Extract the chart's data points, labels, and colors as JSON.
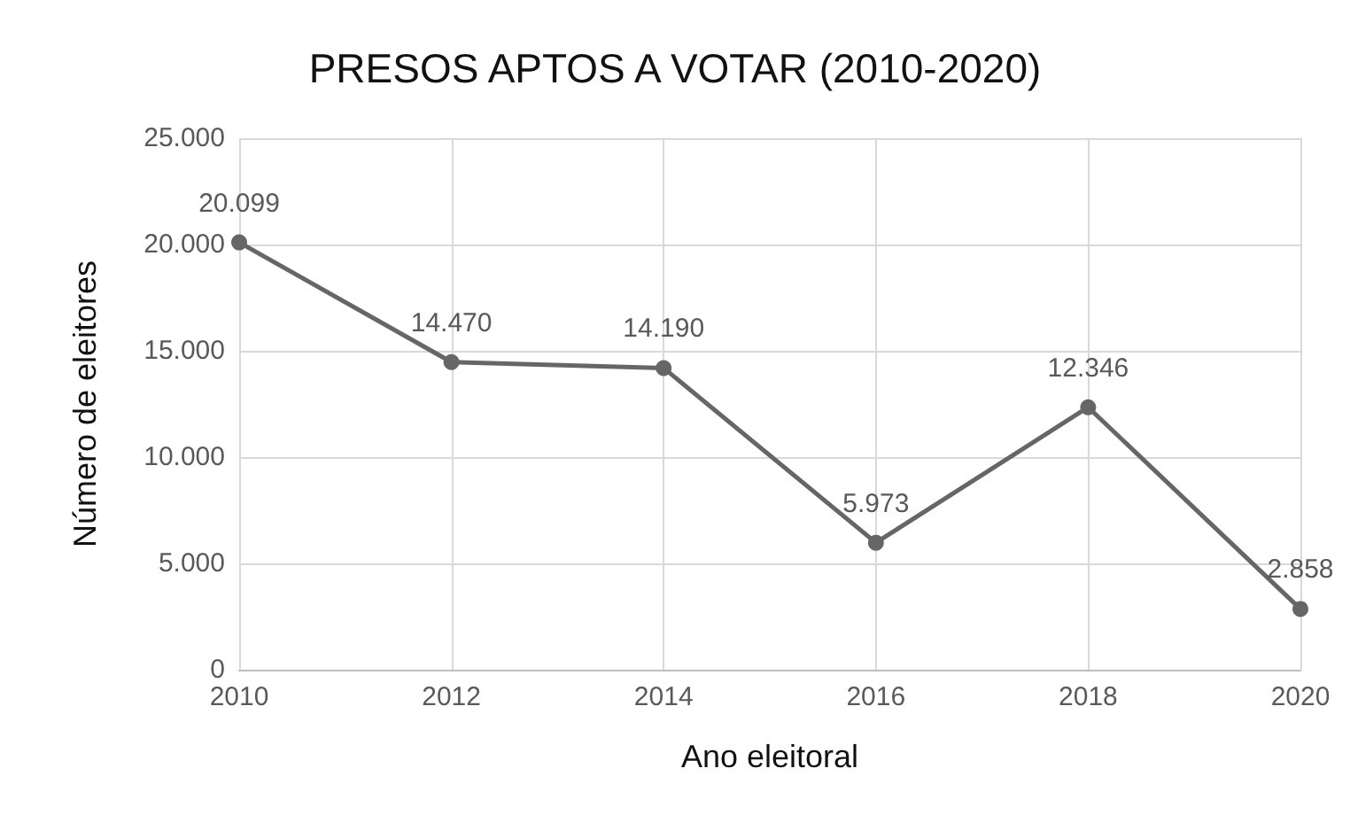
{
  "chart_data": {
    "type": "line",
    "title": "PRESOS APTOS A VOTAR (2010-2020)",
    "xlabel": "Ano eleitoral",
    "ylabel": "Número de eleitores",
    "x": [
      2010,
      2012,
      2014,
      2016,
      2018,
      2020
    ],
    "series": [
      {
        "color": "#666666",
        "values": [
          20099,
          14470,
          14190,
          5973,
          12346,
          2858
        ],
        "value_labels": [
          "20.099",
          "14.470",
          "14.190",
          "5.973",
          "12.346",
          "2.858"
        ]
      }
    ],
    "xlim": [
      2010,
      2020
    ],
    "xticks": [
      2010,
      2012,
      2014,
      2016,
      2018,
      2020
    ],
    "ylim": [
      0,
      25000
    ],
    "yticks": [
      {
        "value": 0,
        "label": "0"
      },
      {
        "value": 5000,
        "label": "5.000"
      },
      {
        "value": 10000,
        "label": "10.000"
      },
      {
        "value": 15000,
        "label": "15.000"
      },
      {
        "value": 20000,
        "label": "20.000"
      },
      {
        "value": 25000,
        "label": "25.000"
      }
    ],
    "grid": true,
    "marker": "circle",
    "line_style": "solid"
  }
}
